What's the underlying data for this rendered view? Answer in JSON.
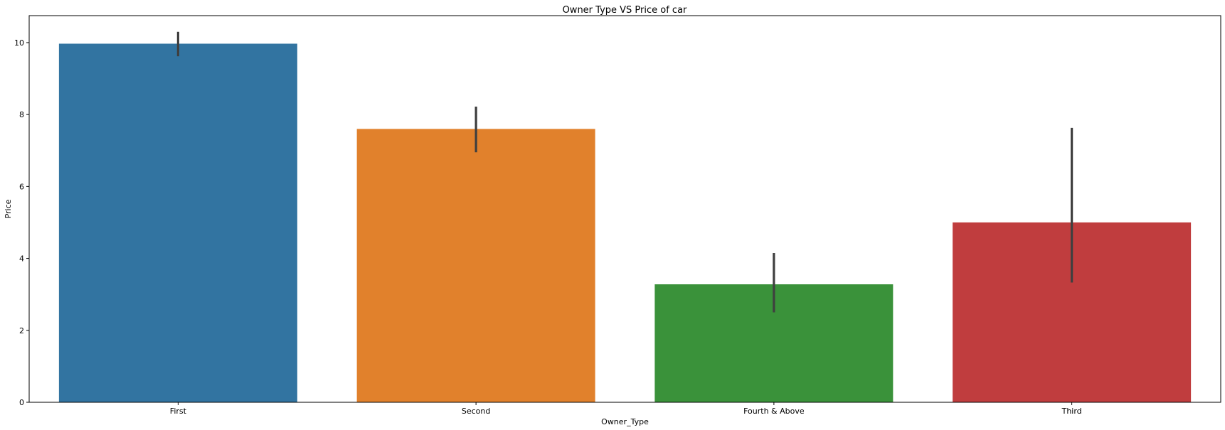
{
  "chart_data": {
    "type": "bar",
    "title": "Owner Type VS Price of car",
    "xlabel": "Owner_Type",
    "ylabel": "Price",
    "ylim": [
      0,
      10.75
    ],
    "yticks": [
      0,
      2,
      4,
      6,
      8,
      10
    ],
    "grid": false,
    "legend": "none",
    "categories": [
      "First",
      "Second",
      "Fourth & Above",
      "Third"
    ],
    "values": [
      9.97,
      7.6,
      3.28,
      5.0
    ],
    "error_bars": [
      {
        "low": 9.62,
        "high": 10.3
      },
      {
        "low": 6.95,
        "high": 8.22
      },
      {
        "low": 2.5,
        "high": 4.15
      },
      {
        "low": 3.33,
        "high": 7.63
      }
    ],
    "colors": [
      "#3274a1",
      "#e1812c",
      "#3a923a",
      "#c03d3e"
    ],
    "error_color": "#3f3f3f"
  }
}
